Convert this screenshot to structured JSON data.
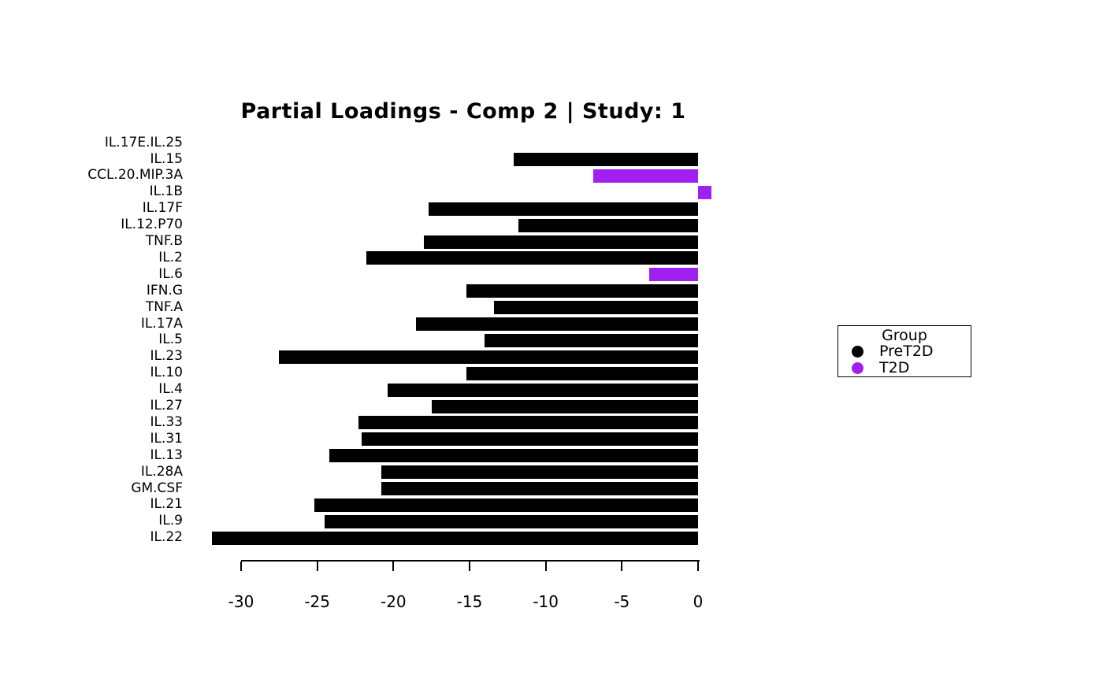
{
  "title": "Partial Loadings - Comp 2 | Study: 1",
  "legend": {
    "title": "Group",
    "entries": [
      {
        "label": "PreT2D",
        "color": "#000000"
      },
      {
        "label": "T2D",
        "color": "#A020F0"
      }
    ]
  },
  "chart_data": {
    "type": "bar",
    "orientation": "horizontal",
    "title": "Partial Loadings - Comp 2 | Study: 1",
    "xlabel": "",
    "ylabel": "",
    "xlim": [
      -32,
      1
    ],
    "xticks": [
      -30,
      -25,
      -20,
      -15,
      -10,
      -5,
      0
    ],
    "grid": false,
    "legend_position": "right",
    "group_colors": {
      "PreT2D": "#000000",
      "T2D": "#A020F0"
    },
    "categories": [
      "IL.17E.IL.25",
      "IL.15",
      "CCL.20.MIP.3A",
      "IL.1B",
      "IL.17F",
      "IL.12.P70",
      "TNF.B",
      "IL.2",
      "IL.6",
      "IFN.G",
      "TNF.A",
      "IL.17A",
      "IL.5",
      "IL.23",
      "IL.10",
      "IL.4",
      "IL.27",
      "IL.33",
      "IL.31",
      "IL.13",
      "IL.28A",
      "GM.CSF",
      "IL.21",
      "IL.9",
      "IL.22"
    ],
    "groups": [
      "PreT2D",
      "PreT2D",
      "T2D",
      "T2D",
      "PreT2D",
      "PreT2D",
      "PreT2D",
      "PreT2D",
      "T2D",
      "PreT2D",
      "PreT2D",
      "PreT2D",
      "PreT2D",
      "PreT2D",
      "PreT2D",
      "PreT2D",
      "PreT2D",
      "PreT2D",
      "PreT2D",
      "PreT2D",
      "PreT2D",
      "PreT2D",
      "PreT2D",
      "PreT2D",
      "PreT2D"
    ],
    "values": [
      0,
      -12.1,
      -6.9,
      0.9,
      -17.7,
      -11.8,
      -18.0,
      -21.8,
      -3.2,
      -15.2,
      -13.4,
      -18.5,
      -14.0,
      -27.5,
      -15.2,
      -20.4,
      -17.5,
      -22.3,
      -22.1,
      -24.2,
      -20.8,
      -20.8,
      -25.2,
      -24.5,
      -31.9
    ]
  }
}
